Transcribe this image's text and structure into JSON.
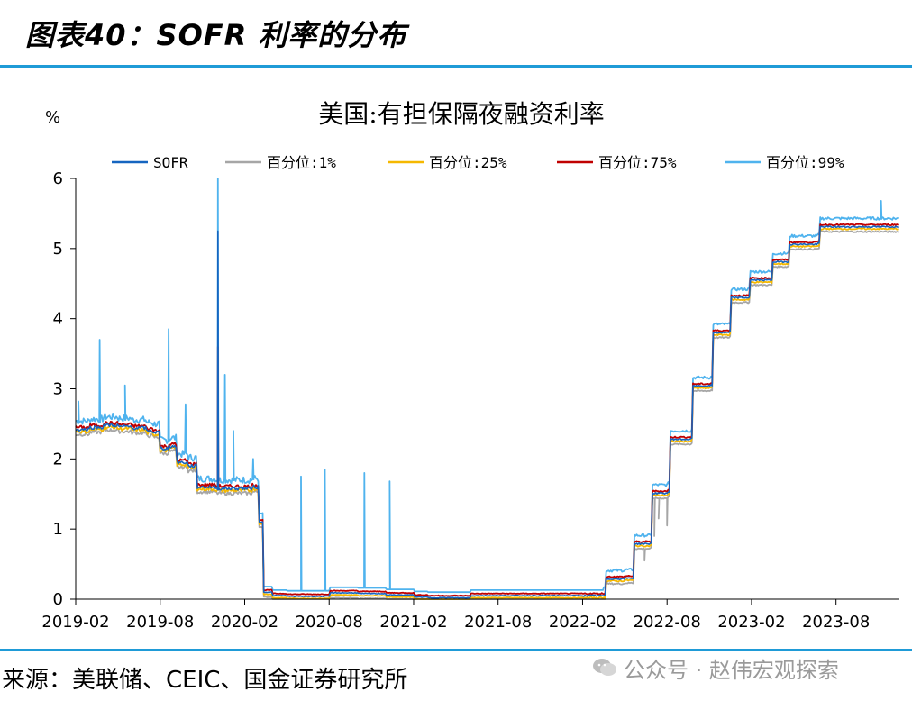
{
  "figure": {
    "title": "图表40：SOFR 利率的分布",
    "source": "来源：美联储、CEIC、国金证券研究所",
    "watermark": "公众号 · 赵伟宏观探索"
  },
  "chart_data": {
    "type": "line",
    "title": "美国:有担保隔夜融资利率",
    "ylabel": "%",
    "xlabel": "",
    "ylim": [
      0,
      6
    ],
    "yticks": [
      0,
      1,
      2,
      3,
      4,
      5,
      6
    ],
    "x_range": [
      "2019-02",
      "2023-12"
    ],
    "xtick_labels": [
      "2019-02",
      "2019-08",
      "2020-02",
      "2020-08",
      "2021-02",
      "2021-08",
      "2022-02",
      "2022-08",
      "2023-02",
      "2023-08"
    ],
    "xtick_positions_months": [
      0,
      6,
      12,
      18,
      24,
      30,
      36,
      42,
      48,
      54
    ],
    "x_units": "months since 2019-02",
    "colors": {
      "SOFR": "#1565c0",
      "p1": "#a6a6a6",
      "p25": "#f5b800",
      "p75": "#c00000",
      "p99": "#4fb3ee"
    },
    "series": [
      {
        "name": "SOFR",
        "key": "SOFR",
        "offset": 0.0
      },
      {
        "name": "百分位:1%",
        "key": "p1",
        "offset": -0.07
      },
      {
        "name": "百分位:25%",
        "key": "p25",
        "offset": -0.03
      },
      {
        "name": "百分位:75%",
        "key": "p75",
        "offset": 0.03
      },
      {
        "name": "百分位:99%",
        "key": "p99",
        "offset": 0.12
      }
    ],
    "sofr_levels": [
      [
        0,
        2.42
      ],
      [
        1,
        2.45
      ],
      [
        2,
        2.48
      ],
      [
        3,
        2.46
      ],
      [
        4,
        2.44
      ],
      [
        5,
        2.4
      ],
      [
        5.5,
        2.38
      ],
      [
        6,
        2.15
      ],
      [
        6.6,
        2.18
      ],
      [
        7.2,
        1.95
      ],
      [
        8,
        1.9
      ],
      [
        8.6,
        1.6
      ],
      [
        10,
        1.58
      ],
      [
        11,
        1.58
      ],
      [
        12,
        1.58
      ],
      [
        12.5,
        1.6
      ],
      [
        13.0,
        1.1
      ],
      [
        13.3,
        0.1
      ],
      [
        14,
        0.05
      ],
      [
        15,
        0.04
      ],
      [
        18,
        0.09
      ],
      [
        20,
        0.08
      ],
      [
        22,
        0.06
      ],
      [
        24,
        0.03
      ],
      [
        25,
        0.02
      ],
      [
        28,
        0.05
      ],
      [
        32,
        0.05
      ],
      [
        36,
        0.05
      ],
      [
        37.5,
        0.05
      ],
      [
        37.6,
        0.29
      ],
      [
        39,
        0.3
      ],
      [
        39.6,
        0.79
      ],
      [
        40.8,
        0.8
      ],
      [
        40.9,
        1.51
      ],
      [
        42,
        1.53
      ],
      [
        42.2,
        2.28
      ],
      [
        43.7,
        2.3
      ],
      [
        43.8,
        3.04
      ],
      [
        45.1,
        3.05
      ],
      [
        45.2,
        3.8
      ],
      [
        46.4,
        3.82
      ],
      [
        46.5,
        4.3
      ],
      [
        47.8,
        4.31
      ],
      [
        47.9,
        4.55
      ],
      [
        49.4,
        4.55
      ],
      [
        49.5,
        4.81
      ],
      [
        50.6,
        4.82
      ],
      [
        50.7,
        5.06
      ],
      [
        52.7,
        5.07
      ],
      [
        52.8,
        5.31
      ],
      [
        58.5,
        5.33
      ]
    ],
    "spikes": [
      {
        "x": 0.2,
        "y": 2.82,
        "key": "p99"
      },
      {
        "x": 1.7,
        "y": 3.7,
        "key": "p99"
      },
      {
        "x": 3.5,
        "y": 3.05,
        "key": "p99"
      },
      {
        "x": 6.6,
        "y": 3.85,
        "key": "p99"
      },
      {
        "x": 7.8,
        "y": 2.78,
        "key": "p99"
      },
      {
        "x": 10.1,
        "y": 6.0,
        "key": "p99"
      },
      {
        "x": 10.1,
        "y": 5.25,
        "key": "SOFR"
      },
      {
        "x": 10.1,
        "y": 3.6,
        "key": "p75"
      },
      {
        "x": 10.6,
        "y": 3.2,
        "key": "p99"
      },
      {
        "x": 11.2,
        "y": 2.4,
        "key": "p99"
      },
      {
        "x": 12.6,
        "y": 2.0,
        "key": "p99"
      },
      {
        "x": 16.0,
        "y": 1.75,
        "key": "p99"
      },
      {
        "x": 17.7,
        "y": 1.85,
        "key": "p99"
      },
      {
        "x": 20.5,
        "y": 1.8,
        "key": "p99"
      },
      {
        "x": 22.3,
        "y": 1.68,
        "key": "p99"
      },
      {
        "x": 57.2,
        "y": 5.68,
        "key": "p99"
      }
    ],
    "dips": [
      {
        "x": 37.4,
        "y": 0.0,
        "key": "p1"
      },
      {
        "x": 40.4,
        "y": 0.55,
        "key": "p1"
      },
      {
        "x": 41.1,
        "y": 0.9,
        "key": "p1"
      },
      {
        "x": 41.4,
        "y": 1.15,
        "key": "p1"
      },
      {
        "x": 42.0,
        "y": 1.05,
        "key": "p1"
      }
    ]
  }
}
